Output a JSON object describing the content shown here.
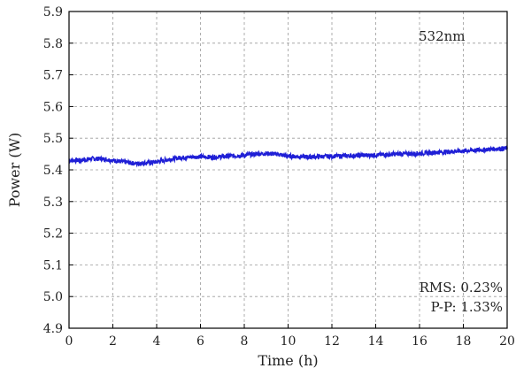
{
  "chart_data": {
    "type": "line",
    "title": "",
    "xlabel": "Time (h)",
    "ylabel": "Power (W)",
    "xlim": [
      0,
      20
    ],
    "ylim": [
      4.9,
      5.9
    ],
    "x_ticks": [
      "0",
      "2",
      "4",
      "6",
      "8",
      "10",
      "12",
      "14",
      "16",
      "18",
      "20"
    ],
    "y_ticks": [
      "4.9",
      "5.0",
      "5.1",
      "5.2",
      "5.3",
      "5.4",
      "5.5",
      "5.6",
      "5.7",
      "5.8",
      "5.9"
    ],
    "grid": true,
    "annotations": {
      "wavelength": "532nm",
      "rms": "RMS: 0.23%",
      "pp": "P-P: 1.33%"
    },
    "series": [
      {
        "color": "#1f1fd6",
        "x": [
          0,
          0.5,
          1,
          1.5,
          2,
          2.5,
          3,
          3.5,
          4,
          4.5,
          5,
          5.5,
          6,
          6.5,
          7,
          7.5,
          8,
          8.5,
          9,
          9.5,
          10,
          10.5,
          11,
          11.5,
          12,
          12.5,
          13,
          13.5,
          14,
          14.5,
          15,
          15.5,
          16,
          16.5,
          17,
          17.5,
          18,
          18.5,
          19,
          19.5,
          20
        ],
        "y": [
          5.43,
          5.43,
          5.435,
          5.435,
          5.43,
          5.425,
          5.42,
          5.422,
          5.425,
          5.432,
          5.438,
          5.44,
          5.442,
          5.44,
          5.442,
          5.444,
          5.446,
          5.45,
          5.452,
          5.45,
          5.443,
          5.442,
          5.441,
          5.442,
          5.443,
          5.444,
          5.445,
          5.446,
          5.447,
          5.448,
          5.45,
          5.451,
          5.452,
          5.454,
          5.456,
          5.458,
          5.46,
          5.462,
          5.464,
          5.467,
          5.468
        ]
      }
    ]
  }
}
